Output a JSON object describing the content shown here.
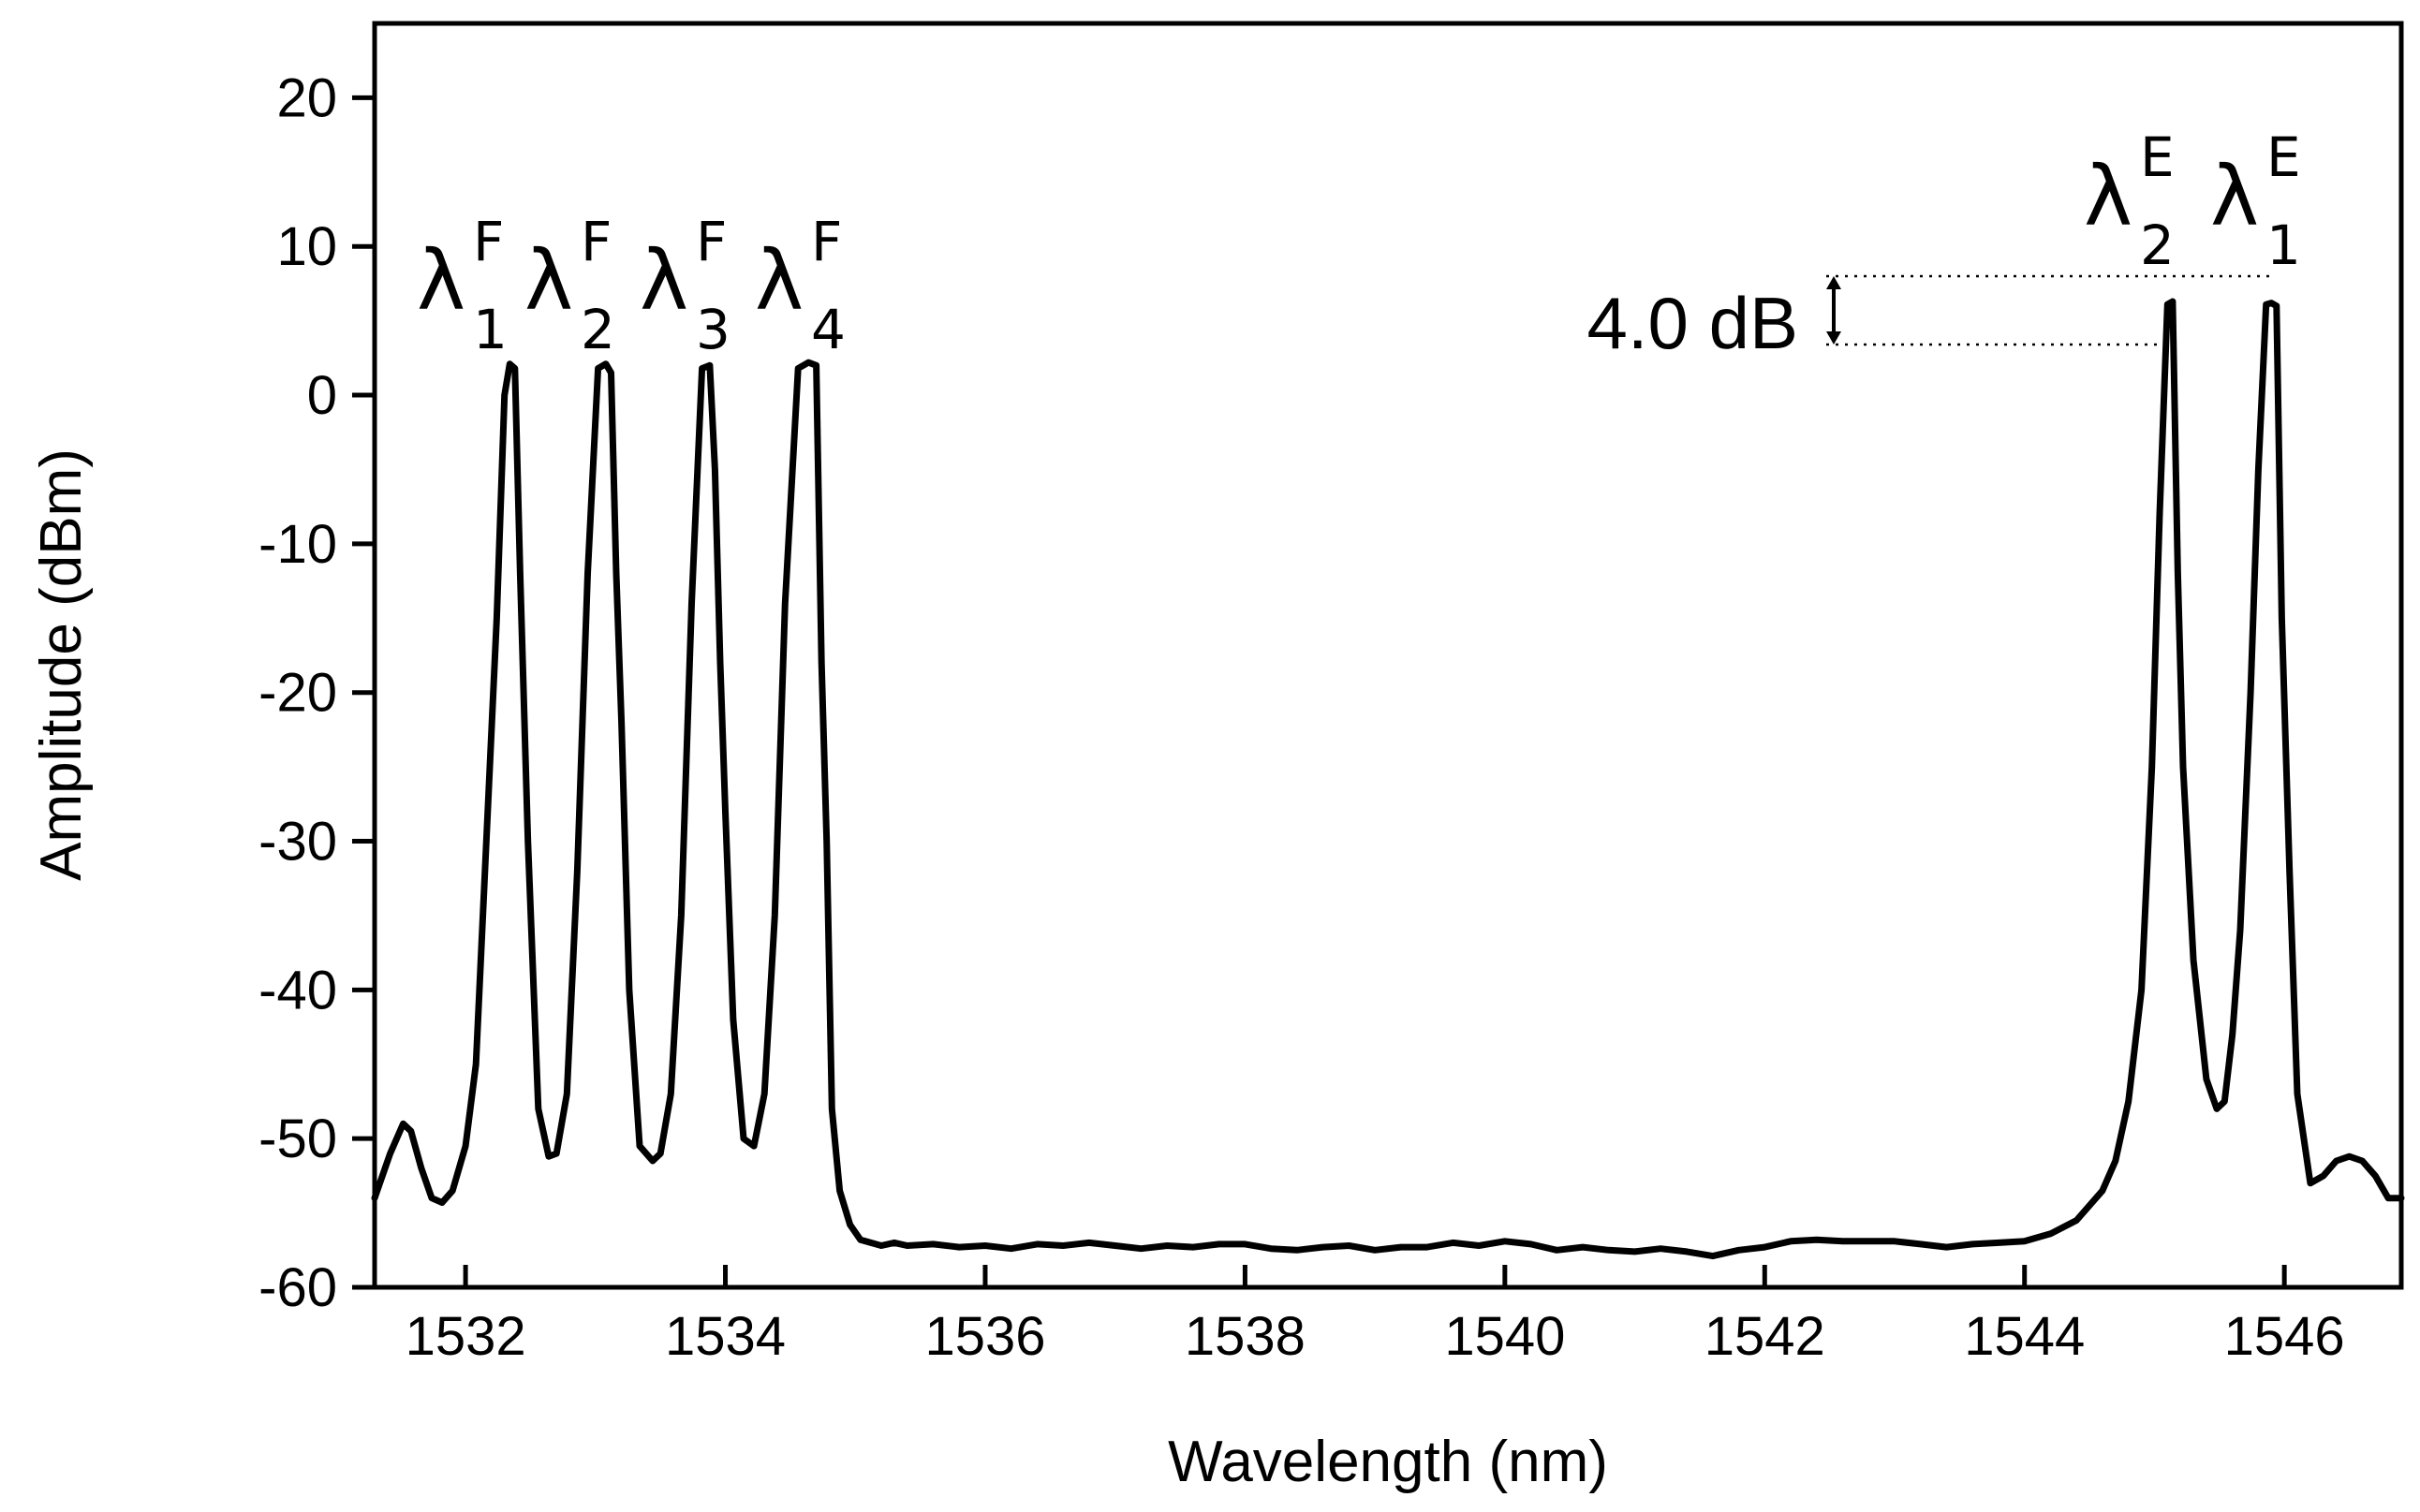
{
  "chart_data": {
    "type": "line",
    "title": "",
    "xlabel": "Wavelength (nm)",
    "ylabel": "Amplitude (dBm)",
    "xlim": [
      1531.3,
      1546.9
    ],
    "ylim": [
      -60,
      25
    ],
    "xticks": [
      1532,
      1534,
      1536,
      1538,
      1540,
      1542,
      1544,
      1546
    ],
    "yticks": [
      -60,
      -50,
      -40,
      -30,
      -20,
      -10,
      0,
      10,
      20
    ],
    "xtick_labels": [
      "1532",
      "1534",
      "1536",
      "1538",
      "1540",
      "1542",
      "1544",
      "1546"
    ],
    "ytick_labels": [
      "-60",
      "-50",
      "-40",
      "-30",
      "-20",
      "-10",
      "0",
      "10",
      "20"
    ],
    "grid": false,
    "series": [
      {
        "name": "",
        "x": [
          1531.3,
          1531.42,
          1531.52,
          1531.58,
          1531.66,
          1531.74,
          1531.82,
          1531.9,
          1532.0,
          1532.08,
          1532.16,
          1532.24,
          1532.3,
          1532.34,
          1532.38,
          1532.42,
          1532.48,
          1532.56,
          1532.64,
          1532.7,
          1532.78,
          1532.86,
          1532.94,
          1533.02,
          1533.08,
          1533.12,
          1533.16,
          1533.2,
          1533.26,
          1533.34,
          1533.44,
          1533.5,
          1533.58,
          1533.66,
          1533.74,
          1533.82,
          1533.88,
          1533.92,
          1533.96,
          1534.0,
          1534.06,
          1534.14,
          1534.22,
          1534.3,
          1534.38,
          1534.46,
          1534.56,
          1534.64,
          1534.7,
          1534.74,
          1534.78,
          1534.82,
          1534.88,
          1534.96,
          1535.04,
          1535.12,
          1535.2,
          1535.3,
          1535.4,
          1535.6,
          1535.8,
          1536.0,
          1536.2,
          1536.4,
          1536.6,
          1536.8,
          1537.0,
          1537.2,
          1537.4,
          1537.6,
          1537.8,
          1538.0,
          1538.2,
          1538.4,
          1538.6,
          1538.8,
          1539.0,
          1539.2,
          1539.4,
          1539.6,
          1539.8,
          1540.0,
          1540.2,
          1540.4,
          1540.6,
          1540.8,
          1541.0,
          1541.2,
          1541.4,
          1541.6,
          1541.8,
          1542.0,
          1542.2,
          1542.4,
          1542.6,
          1542.8,
          1543.0,
          1543.2,
          1543.4,
          1543.6,
          1543.8,
          1544.0,
          1544.2,
          1544.4,
          1544.6,
          1544.7,
          1544.8,
          1544.9,
          1544.98,
          1545.04,
          1545.1,
          1545.14,
          1545.18,
          1545.22,
          1545.3,
          1545.4,
          1545.48,
          1545.54,
          1545.6,
          1545.66,
          1545.74,
          1545.8,
          1545.86,
          1545.9,
          1545.94,
          1545.98,
          1546.04,
          1546.1,
          1546.2,
          1546.3,
          1546.4,
          1546.5,
          1546.6,
          1546.7,
          1546.8,
          1546.9
        ],
        "y": [
          -54.0,
          -51.0,
          -49.0,
          -49.5,
          -52.0,
          -54.0,
          -54.3,
          -53.5,
          -50.5,
          -45.0,
          -30.0,
          -15.0,
          0.0,
          2.1,
          1.8,
          -12.0,
          -30.0,
          -48.0,
          -51.2,
          -51.0,
          -47.0,
          -32.0,
          -12.0,
          1.8,
          2.1,
          1.5,
          -12.0,
          -22.0,
          -40.0,
          -50.5,
          -51.5,
          -51.0,
          -47.0,
          -35.0,
          -14.0,
          1.8,
          2.0,
          -5.0,
          -18.0,
          -28.0,
          -42.0,
          -50.0,
          -50.5,
          -47.0,
          -35.0,
          -14.0,
          1.8,
          2.2,
          2.0,
          -18.0,
          -30.0,
          -48.0,
          -53.5,
          -55.8,
          -56.8,
          -57.0,
          -57.2,
          -57.0,
          -57.2,
          -57.1,
          -57.3,
          -57.2,
          -57.4,
          -57.1,
          -57.2,
          -57.0,
          -57.2,
          -57.4,
          -57.2,
          -57.3,
          -57.1,
          -57.1,
          -57.4,
          -57.5,
          -57.3,
          -57.2,
          -57.5,
          -57.3,
          -57.3,
          -57.0,
          -57.2,
          -56.9,
          -57.1,
          -57.5,
          -57.3,
          -57.5,
          -57.6,
          -57.4,
          -57.6,
          -57.9,
          -57.5,
          -57.3,
          -56.9,
          -56.8,
          -56.9,
          -56.9,
          -56.9,
          -57.1,
          -57.3,
          -57.1,
          -57.0,
          -56.9,
          -56.4,
          -55.5,
          -53.5,
          -51.5,
          -47.5,
          -40.0,
          -25.0,
          -8.0,
          6.1,
          6.3,
          -12.0,
          -25.0,
          -38.0,
          -46.0,
          -48.0,
          -47.5,
          -43.0,
          -36.0,
          -20.0,
          -5.0,
          6.1,
          6.2,
          6.0,
          -15.0,
          -32.0,
          -47.0,
          -53.0,
          -52.5,
          -51.5,
          -51.2,
          -51.5,
          -52.5,
          -54.0,
          -54.0
        ]
      }
    ],
    "peak_labels": [
      {
        "lambda": "λ",
        "sup": "F",
        "sub": "1"
      },
      {
        "lambda": "λ",
        "sup": "F",
        "sub": "2"
      },
      {
        "lambda": "λ",
        "sup": "F",
        "sub": "3"
      },
      {
        "lambda": "λ",
        "sup": "F",
        "sub": "4"
      },
      {
        "lambda": "λ",
        "sup": "E",
        "sub": "2"
      },
      {
        "lambda": "λ",
        "sup": "E",
        "sub": "1"
      }
    ],
    "annotation": {
      "text": "4.0 dB",
      "upper_db": 8.0,
      "lower_db": 3.4
    }
  }
}
